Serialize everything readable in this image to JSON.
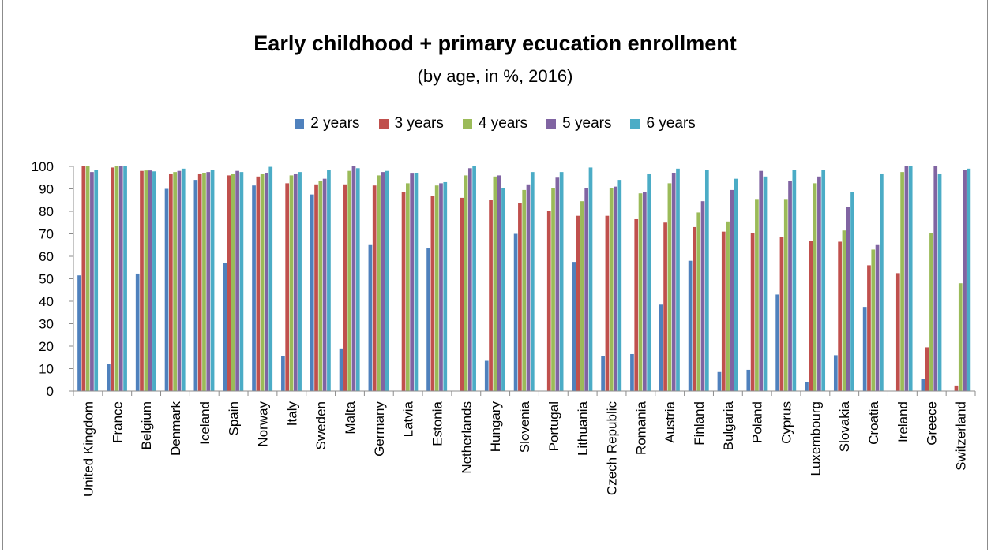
{
  "chart_data": {
    "type": "bar",
    "title": "Early childhood + primary ecucation enrollment",
    "subtitle": "(by age, in %, 2016)",
    "ylim": [
      0,
      100
    ],
    "yticks": [
      0,
      10,
      20,
      30,
      40,
      50,
      60,
      70,
      80,
      90,
      100
    ],
    "grid": false,
    "legend_position": "top",
    "categories": [
      "United Kingdom",
      "France",
      "Belgium",
      "Denmark",
      "Iceland",
      "Spain",
      "Norway",
      "Italy",
      "Sweden",
      "Malta",
      "Germany",
      "Latvia",
      "Estonia",
      "Netherlands",
      "Hungary",
      "Slovenia",
      "Portugal",
      "Lithuania",
      "Czech Republic",
      "Romania",
      "Austria",
      "Finland",
      "Bulgaria",
      "Poland",
      "Cyprus",
      "Luxembourg",
      "Slovakia",
      "Croatia",
      "Ireland",
      "Greece",
      "Switzerland"
    ],
    "series": [
      {
        "name": "2 years",
        "color": "#4f81bd",
        "values": [
          51.5,
          12,
          52.3,
          90,
          94,
          57,
          91.5,
          15.5,
          87.5,
          19,
          65,
          0,
          63.5,
          0,
          13.5,
          70,
          0,
          57.5,
          15.5,
          16.5,
          38.5,
          58,
          8.5,
          9.5,
          43,
          4,
          16,
          37.5,
          0,
          5.5,
          0
        ]
      },
      {
        "name": "3 years",
        "color": "#c0504d",
        "values": [
          100,
          99.5,
          98,
          96.5,
          96.5,
          96,
          95.5,
          92.5,
          92,
          92,
          91.5,
          88.5,
          87,
          86,
          85,
          83.5,
          80,
          78,
          78,
          76.5,
          75,
          73,
          71,
          70.5,
          68.5,
          67,
          66.5,
          56,
          52.5,
          19.5,
          2.5
        ]
      },
      {
        "name": "4 years",
        "color": "#9bbb59",
        "values": [
          100,
          100,
          98.2,
          97.5,
          97,
          96.5,
          96.5,
          96,
          93.5,
          98,
          96,
          92.5,
          91.5,
          96,
          95.5,
          89.5,
          90.5,
          84.5,
          90.5,
          88,
          92.5,
          79.5,
          75.5,
          85.5,
          85.5,
          92.5,
          71.5,
          63,
          97.5,
          70.5,
          48
        ]
      },
      {
        "name": "5 years",
        "color": "#8064a2",
        "values": [
          97.5,
          100,
          98.2,
          98,
          97.5,
          98,
          97,
          96.5,
          94.5,
          100,
          97.5,
          96.8,
          92.5,
          99.2,
          96,
          92,
          95,
          90.5,
          91,
          88.5,
          97,
          84.5,
          89.5,
          98,
          93.5,
          95.5,
          82,
          65,
          100,
          100,
          98.5
        ]
      },
      {
        "name": "6 years",
        "color": "#4bacc6",
        "values": [
          98.5,
          100,
          97.8,
          99,
          98.5,
          97.5,
          99.8,
          97.5,
          98.5,
          99.2,
          98,
          97,
          93,
          100,
          90.5,
          97.5,
          97.5,
          99.5,
          94,
          96.5,
          99,
          98.5,
          94.5,
          95.5,
          98.5,
          98.5,
          88.5,
          96.5,
          100,
          96.5,
          99
        ]
      }
    ]
  }
}
